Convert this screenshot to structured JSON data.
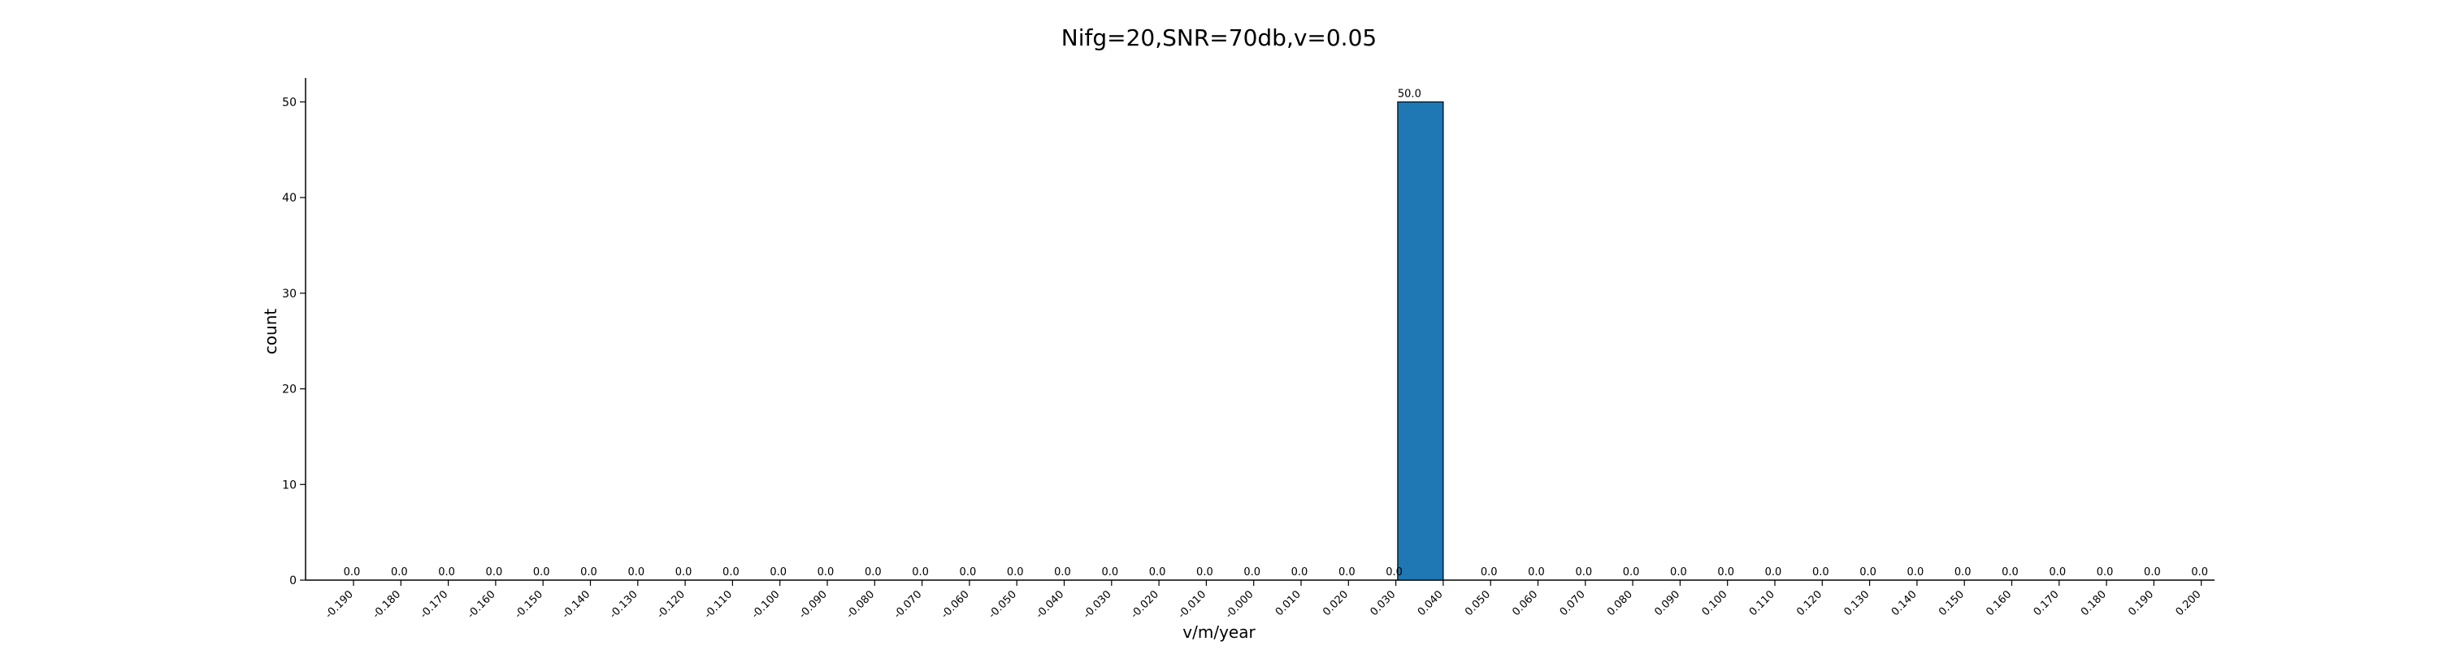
{
  "chart_data": {
    "type": "bar",
    "title": "Nifg=20,SNR=70db,v=0.05",
    "xlabel": "v/m/year",
    "ylabel": "count",
    "categories": [
      "-0.190",
      "-0.180",
      "-0.170",
      "-0.160",
      "-0.150",
      "-0.140",
      "-0.130",
      "-0.120",
      "-0.110",
      "-0.100",
      "-0.090",
      "-0.080",
      "-0.070",
      "-0.060",
      "-0.050",
      "-0.040",
      "-0.030",
      "-0.020",
      "-0.010",
      "-0.000",
      "0.010",
      "0.020",
      "0.030",
      "0.040",
      "0.050",
      "0.060",
      "0.070",
      "0.080",
      "0.090",
      "0.100",
      "0.110",
      "0.120",
      "0.130",
      "0.140",
      "0.150",
      "0.160",
      "0.170",
      "0.180",
      "0.190",
      "0.200"
    ],
    "values": [
      0,
      0,
      0,
      0,
      0,
      0,
      0,
      0,
      0,
      0,
      0,
      0,
      0,
      0,
      0,
      0,
      0,
      0,
      0,
      0,
      0,
      0,
      0,
      50,
      0,
      0,
      0,
      0,
      0,
      0,
      0,
      0,
      0,
      0,
      0,
      0,
      0,
      0,
      0,
      0
    ],
    "data_labels": [
      "0.0",
      "0.0",
      "0.0",
      "0.0",
      "0.0",
      "0.0",
      "0.0",
      "0.0",
      "0.0",
      "0.0",
      "0.0",
      "0.0",
      "0.0",
      "0.0",
      "0.0",
      "0.0",
      "0.0",
      "0.0",
      "0.0",
      "0.0",
      "0.0",
      "0.0",
      "0.0",
      "50.0",
      "0.0",
      "0.0",
      "0.0",
      "0.0",
      "0.0",
      "0.0",
      "0.0",
      "0.0",
      "0.0",
      "0.0",
      "0.0",
      "0.0",
      "0.0",
      "0.0",
      "0.0",
      "0.0"
    ],
    "yticks": [
      "0",
      "10",
      "20",
      "30",
      "40",
      "50"
    ],
    "ylim": [
      0,
      52.5
    ],
    "bar_color": "#1f77b4",
    "grid": false,
    "legend": false
  }
}
